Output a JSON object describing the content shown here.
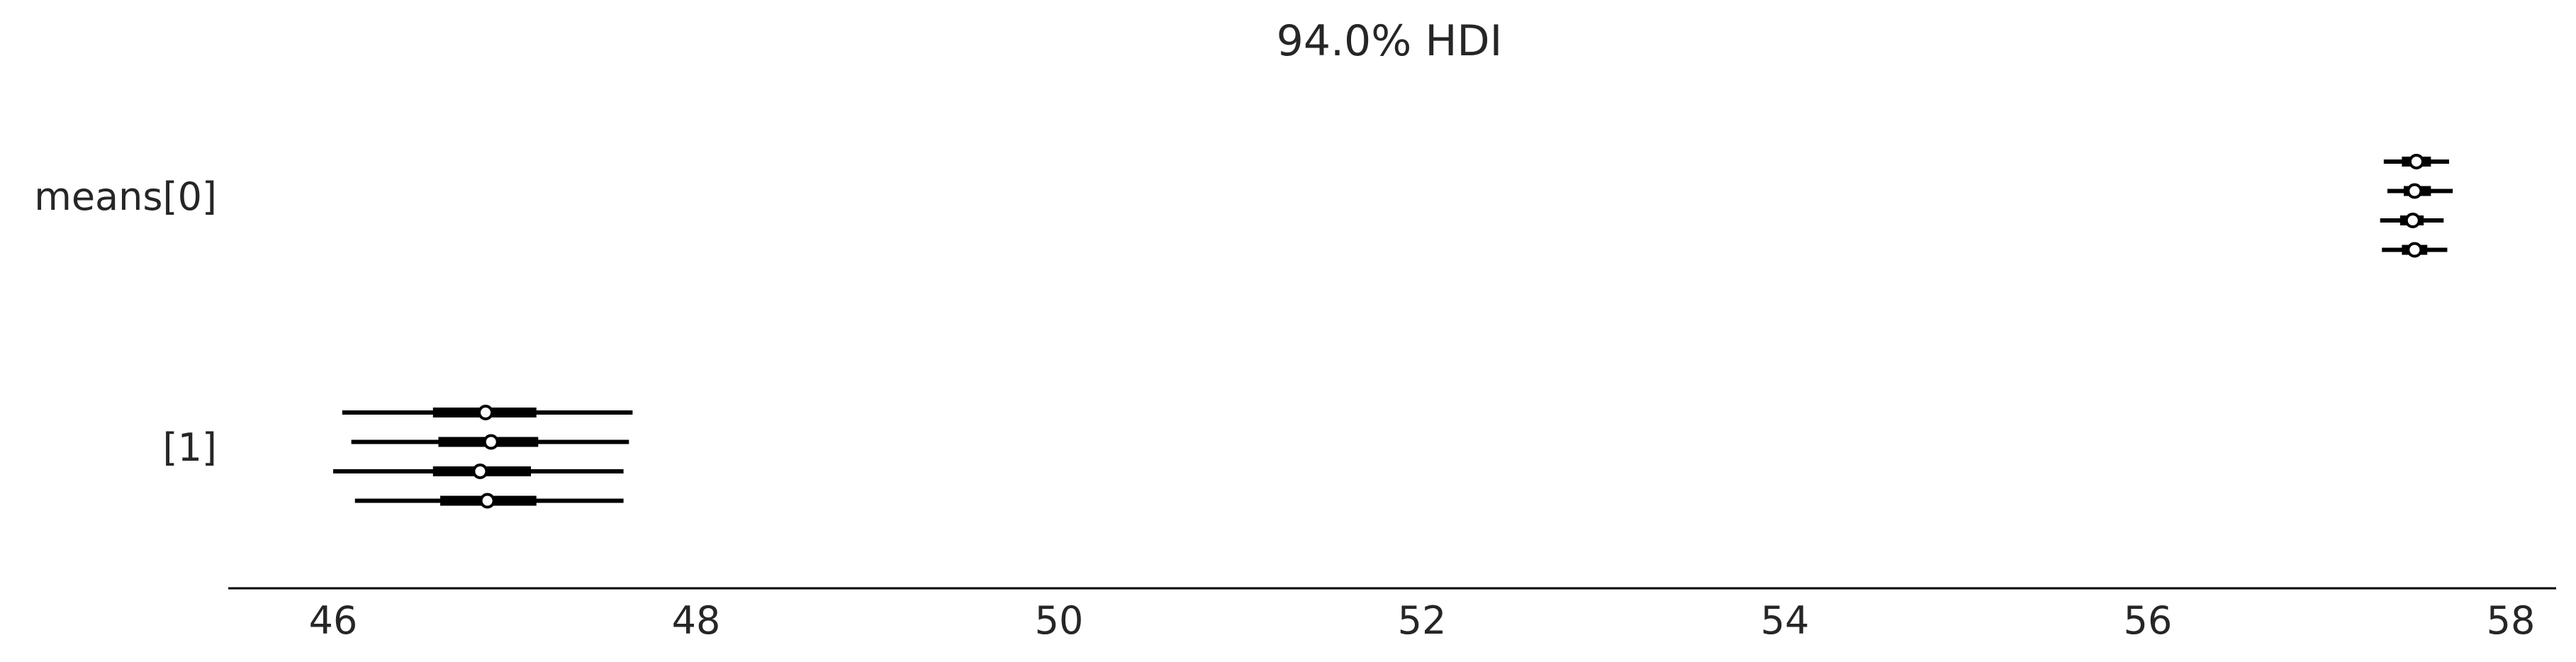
{
  "chart_data": {
    "type": "forest",
    "title": "94.0% HDI",
    "xlabel": "",
    "ylabel": "",
    "xlim": [
      45.4,
      58.5
    ],
    "xticks": [
      46,
      48,
      50,
      52,
      54,
      56,
      58
    ],
    "grid": false,
    "legend": "none",
    "groups": [
      {
        "label": "means[0]",
        "chains": [
          {
            "hdi": [
              57.3,
              57.66
            ],
            "iqr": [
              57.4,
              57.56
            ],
            "median": 57.48
          },
          {
            "hdi": [
              57.32,
              57.68
            ],
            "iqr": [
              57.41,
              57.56
            ],
            "median": 57.47
          },
          {
            "hdi": [
              57.28,
              57.63
            ],
            "iqr": [
              57.39,
              57.52
            ],
            "median": 57.46
          },
          {
            "hdi": [
              57.29,
              57.65
            ],
            "iqr": [
              57.4,
              57.54
            ],
            "median": 57.47
          }
        ]
      },
      {
        "label": "[1]",
        "chains": [
          {
            "hdi": [
              46.05,
              47.65
            ],
            "iqr": [
              46.55,
              47.12
            ],
            "median": 46.84
          },
          {
            "hdi": [
              46.1,
              47.63
            ],
            "iqr": [
              46.58,
              47.13
            ],
            "median": 46.87
          },
          {
            "hdi": [
              46.0,
              47.6
            ],
            "iqr": [
              46.55,
              47.09
            ],
            "median": 46.81
          },
          {
            "hdi": [
              46.12,
              47.6
            ],
            "iqr": [
              46.59,
              47.12
            ],
            "median": 46.85
          }
        ]
      }
    ],
    "colors": {
      "line": "#000000",
      "marker_fill": "#ffffff",
      "text": "#262626"
    }
  }
}
